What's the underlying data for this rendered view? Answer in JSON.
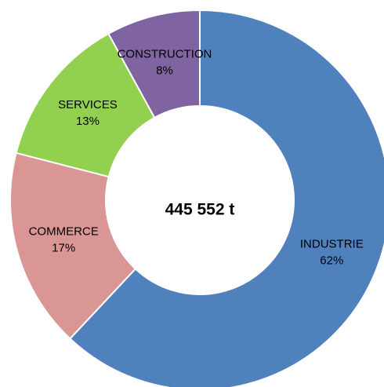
{
  "chart_data": {
    "type": "donut",
    "categories": [
      "INDUSTRIE",
      "COMMERCE",
      "SERVICES",
      "CONSTRUCTION"
    ],
    "values": [
      62,
      17,
      13,
      8
    ],
    "value_labels": [
      "62%",
      "17%",
      "13%",
      "8%"
    ],
    "colors": [
      "#4f81bd",
      "#da9694",
      "#92d050",
      "#8064a2"
    ],
    "center_label": "445 552 t"
  }
}
